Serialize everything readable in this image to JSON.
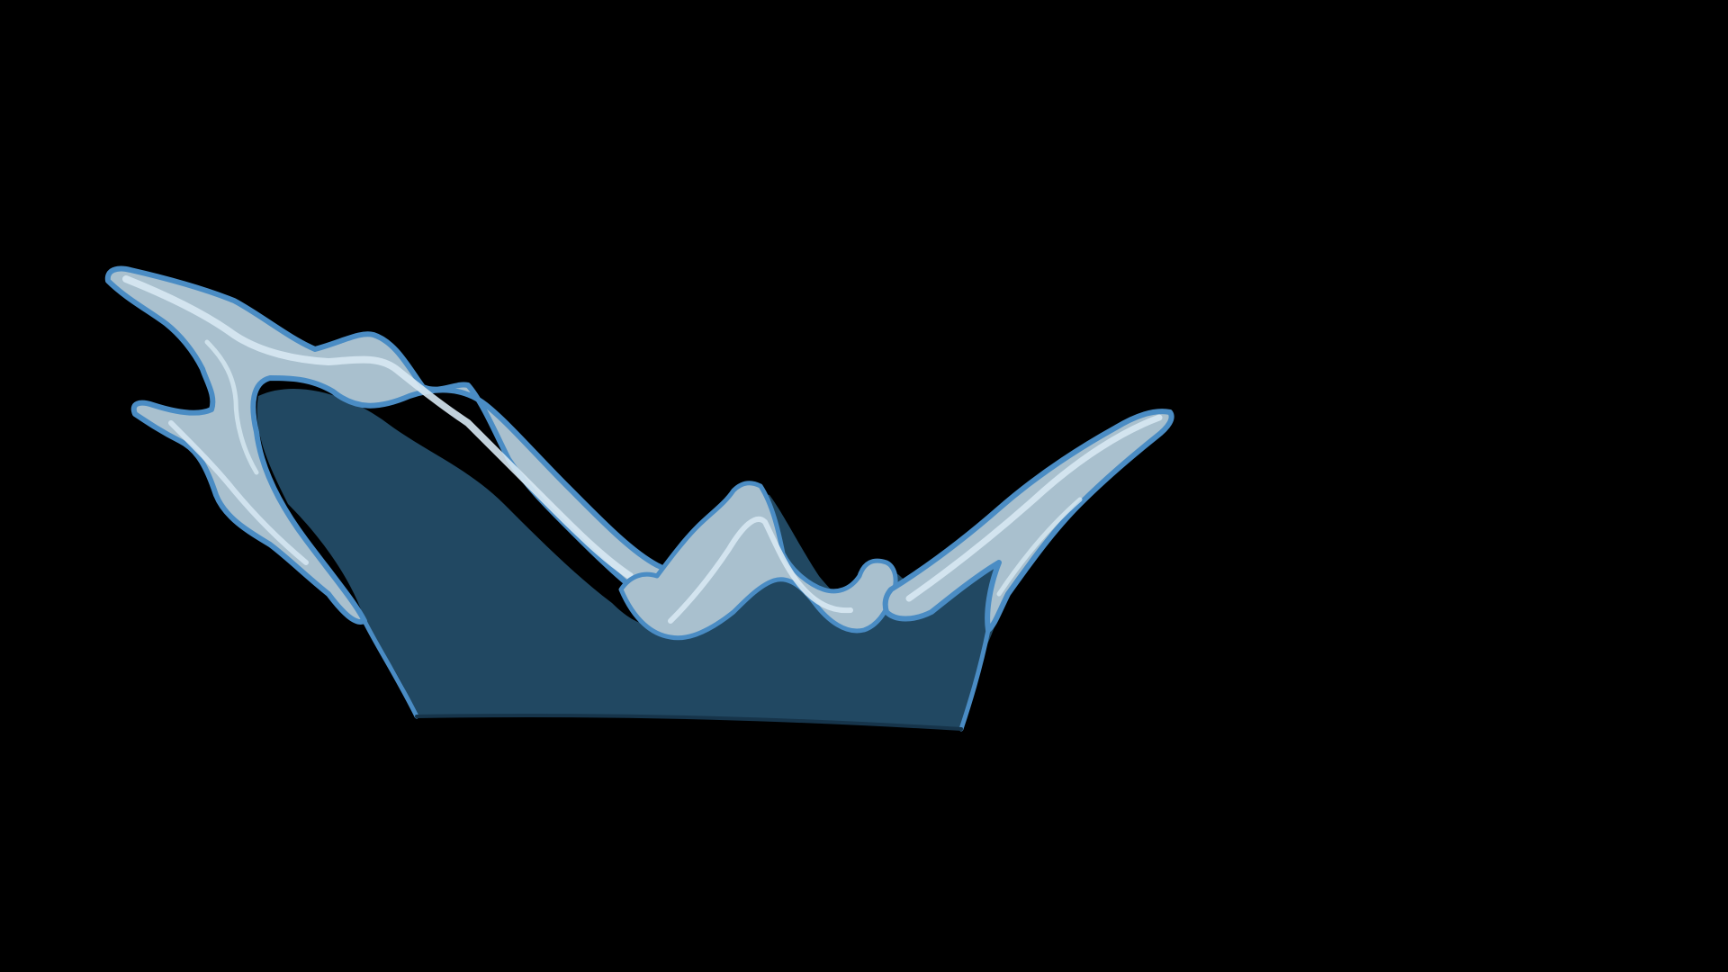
{
  "scene": {
    "subject": "water-splash",
    "colors": {
      "background": "#000000",
      "water_body": "#214862",
      "foam_fill": "#a9c0ce",
      "foam_highlight": "#d7e8f3",
      "outline": "#4a8cc4"
    }
  }
}
